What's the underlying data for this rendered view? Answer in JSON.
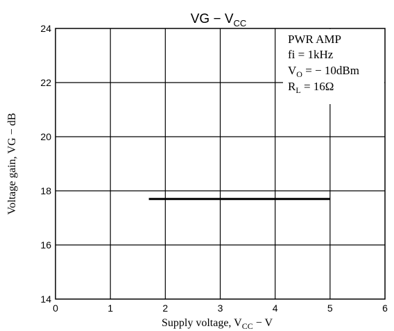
{
  "chart_data": {
    "type": "line",
    "title": "VG − V",
    "title_sub": "CC",
    "xlabel": "Supply voltage, V",
    "xlabel_sub": "CC",
    "xlabel_suffix": " − V",
    "ylabel": "Voltage gain, VG − dB",
    "xlim": [
      0,
      6
    ],
    "ylim": [
      14,
      24
    ],
    "x_ticks": [
      0,
      1,
      2,
      3,
      4,
      5,
      6
    ],
    "x_tick_labels": [
      "0",
      "1",
      "2",
      "3",
      "4",
      "5",
      "6"
    ],
    "y_ticks": [
      14,
      16,
      18,
      20,
      22,
      24
    ],
    "y_tick_labels": [
      "14",
      "16",
      "18",
      "20",
      "22",
      "24"
    ],
    "grid": true,
    "series": [
      {
        "x": [
          1.7,
          5.0
        ],
        "y": [
          17.7,
          17.7
        ]
      }
    ],
    "annotation": {
      "line1": "PWR AMP",
      "line2": "fi = 1kHz",
      "line3_main": "V",
      "line3_sub": "O",
      "line3_rest": " = − 10dBm",
      "line4_main": "R",
      "line4_sub": "L",
      "line4_rest": " = 16Ω"
    },
    "colors": {
      "grid": "#000000",
      "line": "#000000"
    }
  }
}
